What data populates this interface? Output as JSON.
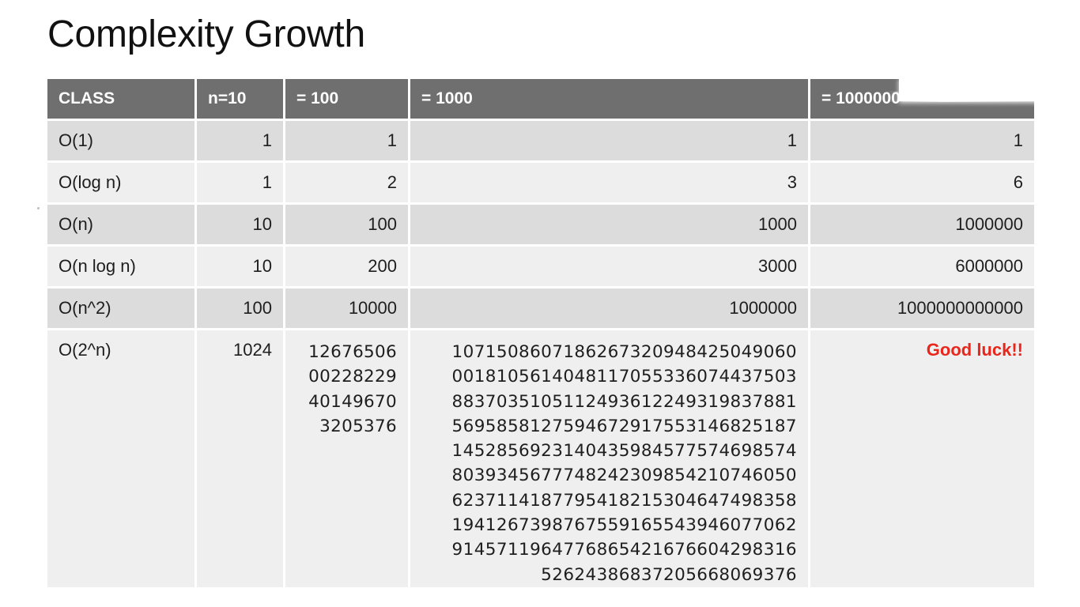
{
  "title": "Complexity Growth",
  "table": {
    "headers": [
      "CLASS",
      "n=10",
      "= 100",
      "= 1000",
      "= 1000000"
    ],
    "rows": [
      {
        "class": "O(1)",
        "n10": "1",
        "n100": "1",
        "n1000": "1",
        "n1000000": "1"
      },
      {
        "class": "O(log n)",
        "n10": "1",
        "n100": "2",
        "n1000": "3",
        "n1000000": "6"
      },
      {
        "class": "O(n)",
        "n10": "10",
        "n100": "100",
        "n1000": "1000",
        "n1000000": "1000000"
      },
      {
        "class": "O(n log n)",
        "n10": "10",
        "n100": "200",
        "n1000": "3000",
        "n1000000": "6000000"
      },
      {
        "class": "O(n^2)",
        "n10": "100",
        "n100": "10000",
        "n1000": "1000000",
        "n1000000": "1000000000000"
      },
      {
        "class": "O(2^n)",
        "n10": "1024",
        "n100": "12676506\n00228229\n40149670\n3205376",
        "n1000": "10715086071862673209484250490​60\n00181056140481170553360744375​03\n88370351051124936122493198378​81\n56958581275946729175531468251​87\n14528569231404359845775746985​74\n80393456777482423098542107460​50\n62371141877954182153046474983​58\n19412673987675591655439460770​62\n91457119647768654216766042983​16\n5262438683720566806937​6",
        "n1000000": "Good luck!!"
      }
    ]
  },
  "colors": {
    "header_bg": "#6f6f6f",
    "row_dark": "#dcdcdc",
    "row_light": "#efefef",
    "good_luck": "#e8261c"
  }
}
